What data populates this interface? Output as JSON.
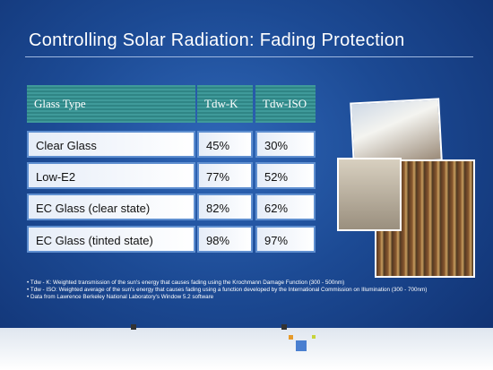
{
  "title": "Controlling Solar Radiation: Fading Protection",
  "table": {
    "header": [
      "Glass Type",
      "Tdw-K",
      "Tdw-ISO"
    ],
    "rows": [
      [
        "Clear Glass",
        "45%",
        "30%"
      ],
      [
        "Low-E2",
        "77%",
        "52%"
      ],
      [
        "EC Glass (clear state)",
        "82%",
        "62%"
      ],
      [
        "EC Glass (tinted state)",
        "98%",
        "97%"
      ]
    ]
  },
  "notes": [
    "Tdw - K: Weighted transmission of the sun's energy that causes fading using the Krochmann Damage Function (300 - 500nm)",
    "Tdw - ISO: Weighted average of the sun's energy that causes fading using a function developed by the International Commission on Illumination (300 - 700nm)",
    "Data from Lawrence Berkeley National Laboratory's Window 5.2 software"
  ]
}
